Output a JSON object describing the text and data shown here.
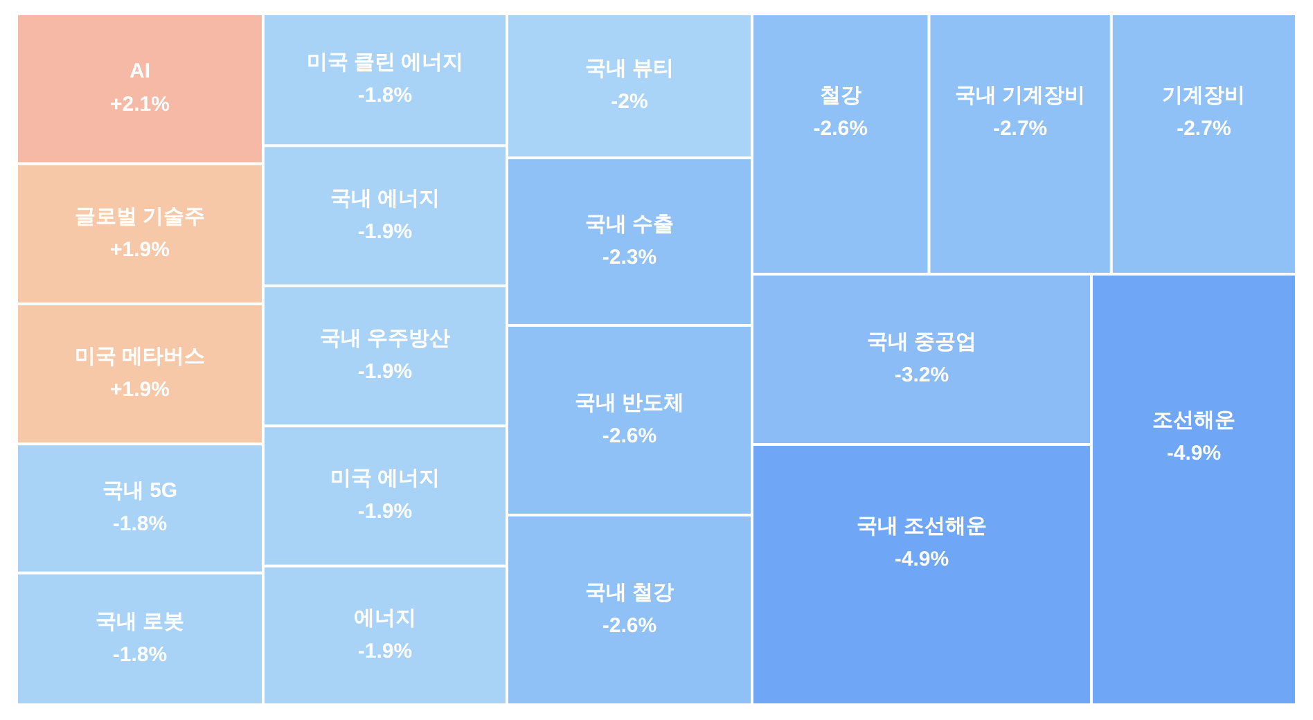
{
  "chart_data": {
    "type": "other",
    "categories": [
      "AI",
      "글로벌 기술주",
      "미국 메타버스",
      "국내 5G",
      "국내 로봇",
      "미국 클린 에너지",
      "국내 에너지",
      "국내 우주방산",
      "미국 에너지",
      "에너지",
      "국내 뷰티",
      "국내 수출",
      "국내 반도체",
      "국내 철강",
      "철강",
      "국내 기계장비",
      "기계장비",
      "국내 중공업",
      "국내 조선해운",
      "조선해운"
    ],
    "values": [
      2.1,
      1.9,
      1.9,
      -1.8,
      -1.8,
      -1.8,
      -1.9,
      -1.9,
      -1.9,
      -1.9,
      -2,
      -2.3,
      -2.6,
      -2.6,
      -2.6,
      -2.7,
      -2.7,
      -3.2,
      -4.9,
      -4.9
    ],
    "value_labels": [
      "+2.1%",
      "+1.9%",
      "+1.9%",
      "-1.8%",
      "-1.8%",
      "-1.8%",
      "-1.9%",
      "-1.9%",
      "-1.9%",
      "-1.9%",
      "-2%",
      "-2.3%",
      "-2.6%",
      "-2.6%",
      "-2.6%",
      "-2.7%",
      "-2.7%",
      "-3.2%",
      "-4.9%",
      "-4.9%"
    ],
    "colors": [
      "#f5b9a6",
      "#f6c8a8",
      "#f6c8a8",
      "#a9d2f7",
      "#a9d2f7",
      "#a9d2f7",
      "#a9d2f7",
      "#a9d2f7",
      "#a9d2f7",
      "#a9d2f7",
      "#aad3f8",
      "#8fc0f6",
      "#8fc0f6",
      "#8fc0f6",
      "#8fc0f6",
      "#8fc0f6",
      "#8fc0f6",
      "#8cbcf6",
      "#70a6f6",
      "#70a6f6"
    ]
  }
}
